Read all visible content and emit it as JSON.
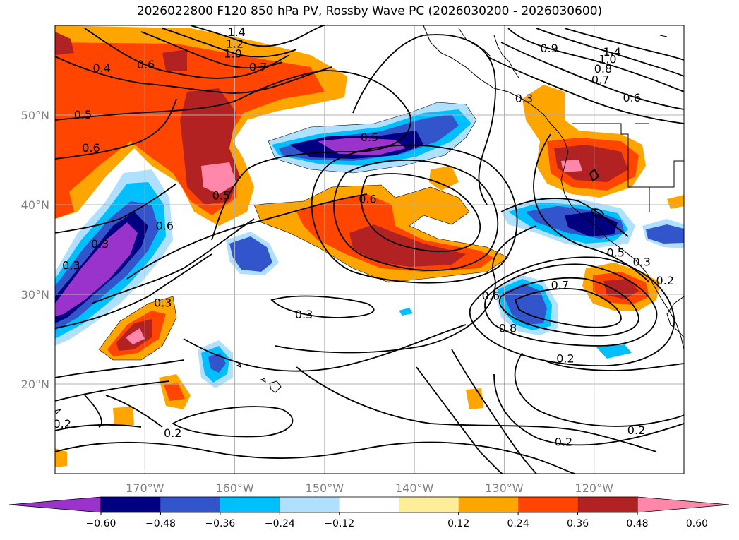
{
  "title": "2026022800 F120 850 hPa PV, Rossby Wave PC (2026030200 - 2026030600)",
  "map": {
    "lon_range": [
      -180,
      -110
    ],
    "lat_range": [
      10,
      60
    ],
    "lat_ticks": [
      {
        "value": 50,
        "label": "50°N"
      },
      {
        "value": 40,
        "label": "40°N"
      },
      {
        "value": 30,
        "label": "30°N"
      },
      {
        "value": 20,
        "label": "20°N"
      }
    ],
    "lon_ticks": [
      {
        "value": -170,
        "label": "170°W"
      },
      {
        "value": -160,
        "label": "160°W"
      },
      {
        "value": -150,
        "label": "150°W"
      },
      {
        "value": -140,
        "label": "140°W"
      },
      {
        "value": -130,
        "label": "130°W"
      },
      {
        "value": -120,
        "label": "120°W"
      }
    ],
    "contour_labels": [
      {
        "text": "1.4",
        "lon": -159.8,
        "lat": 59.2
      },
      {
        "text": "1.2",
        "lon": -160.0,
        "lat": 57.9
      },
      {
        "text": "1.0",
        "lon": -160.2,
        "lat": 56.8
      },
      {
        "text": "0.7",
        "lon": -157.4,
        "lat": 55.3
      },
      {
        "text": "0.6",
        "lon": -169.9,
        "lat": 55.6
      },
      {
        "text": "0.4",
        "lon": -174.8,
        "lat": 55.2
      },
      {
        "text": "0.5",
        "lon": -176.9,
        "lat": 50.0
      },
      {
        "text": "0.6",
        "lon": -176.0,
        "lat": 46.3
      },
      {
        "text": "0.5",
        "lon": -161.5,
        "lat": 41.0
      },
      {
        "text": "0.6",
        "lon": -167.8,
        "lat": 37.6
      },
      {
        "text": "0.3",
        "lon": -175.0,
        "lat": 35.6
      },
      {
        "text": "0.3",
        "lon": -178.2,
        "lat": 33.2
      },
      {
        "text": "0.3",
        "lon": -168.0,
        "lat": 29.0
      },
      {
        "text": "0.5",
        "lon": -145.0,
        "lat": 47.5
      },
      {
        "text": "0.6",
        "lon": -145.2,
        "lat": 40.6
      },
      {
        "text": "0.3",
        "lon": -152.3,
        "lat": 27.7
      },
      {
        "text": "0.6",
        "lon": -131.5,
        "lat": 29.8
      },
      {
        "text": "0.7",
        "lon": -123.8,
        "lat": 31.0
      },
      {
        "text": "0.8",
        "lon": -129.6,
        "lat": 26.2
      },
      {
        "text": "0.2",
        "lon": -123.2,
        "lat": 22.8
      },
      {
        "text": "0.3",
        "lon": -127.8,
        "lat": 51.8
      },
      {
        "text": "0.2",
        "lon": -115.3,
        "lat": 14.8
      },
      {
        "text": "0.2",
        "lon": -123.4,
        "lat": 13.5
      },
      {
        "text": "0.2",
        "lon": -179.2,
        "lat": 15.5
      },
      {
        "text": "0.2",
        "lon": -166.9,
        "lat": 14.5
      },
      {
        "text": "1.4",
        "lon": -118.0,
        "lat": 57.0
      },
      {
        "text": "1.0",
        "lon": -118.5,
        "lat": 56.2
      },
      {
        "text": "0.8",
        "lon": -119.0,
        "lat": 55.1
      },
      {
        "text": "0.7",
        "lon": -119.3,
        "lat": 53.9
      },
      {
        "text": "0.6",
        "lon": -115.8,
        "lat": 51.9
      },
      {
        "text": "0.9",
        "lon": -125.0,
        "lat": 57.4
      },
      {
        "text": "0.5",
        "lon": -117.6,
        "lat": 34.6
      },
      {
        "text": "0.3",
        "lon": -114.7,
        "lat": 33.6
      },
      {
        "text": "0.2",
        "lon": -112.1,
        "lat": 31.5
      }
    ]
  },
  "colorbar": {
    "colors": [
      "#9933cc",
      "#000080",
      "#3355cc",
      "#00bfff",
      "#b0e0ff",
      "#ffffff",
      "#ffee99",
      "#ffa500",
      "#ff4500",
      "#b22222",
      "#ff88aa"
    ],
    "tick_labels": [
      "−0.60",
      "−0.48",
      "−0.36",
      "−0.24",
      "−0.12",
      "0.12",
      "0.24",
      "0.36",
      "0.48",
      "0.60"
    ]
  },
  "style": {
    "contour_color": "#000000",
    "grid_color": "#b0b0b0"
  }
}
